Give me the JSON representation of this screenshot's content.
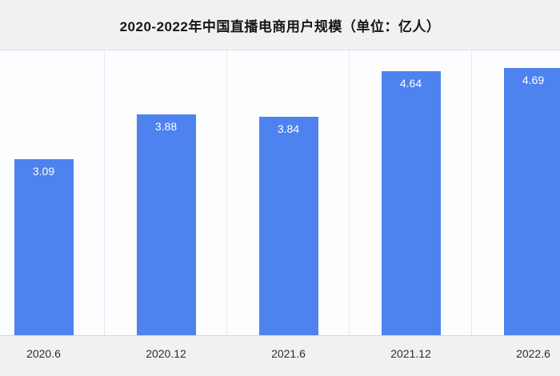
{
  "chart_data": {
    "type": "bar",
    "title": "2020-2022年中国直播电商用户规模（单位：亿人）",
    "categories": [
      "2020.6",
      "2020.12",
      "2021.6",
      "2021.12",
      "2022.6"
    ],
    "values": [
      3.09,
      3.88,
      3.84,
      4.64,
      4.69
    ],
    "value_labels": [
      "3.09",
      "3.88",
      "3.84",
      "4.64",
      "4.69"
    ],
    "xlabel": "",
    "ylabel": "",
    "ylim": [
      0,
      5
    ],
    "grid": "vertical-gridlines-only",
    "legend": "none",
    "bar_color": "#4e82ee",
    "value_label_color": "#ffffff",
    "background_color": "#f0f1f3",
    "plot_background_color": "#fcfdfe",
    "note": "first and last bars are cropped by the image edges"
  }
}
